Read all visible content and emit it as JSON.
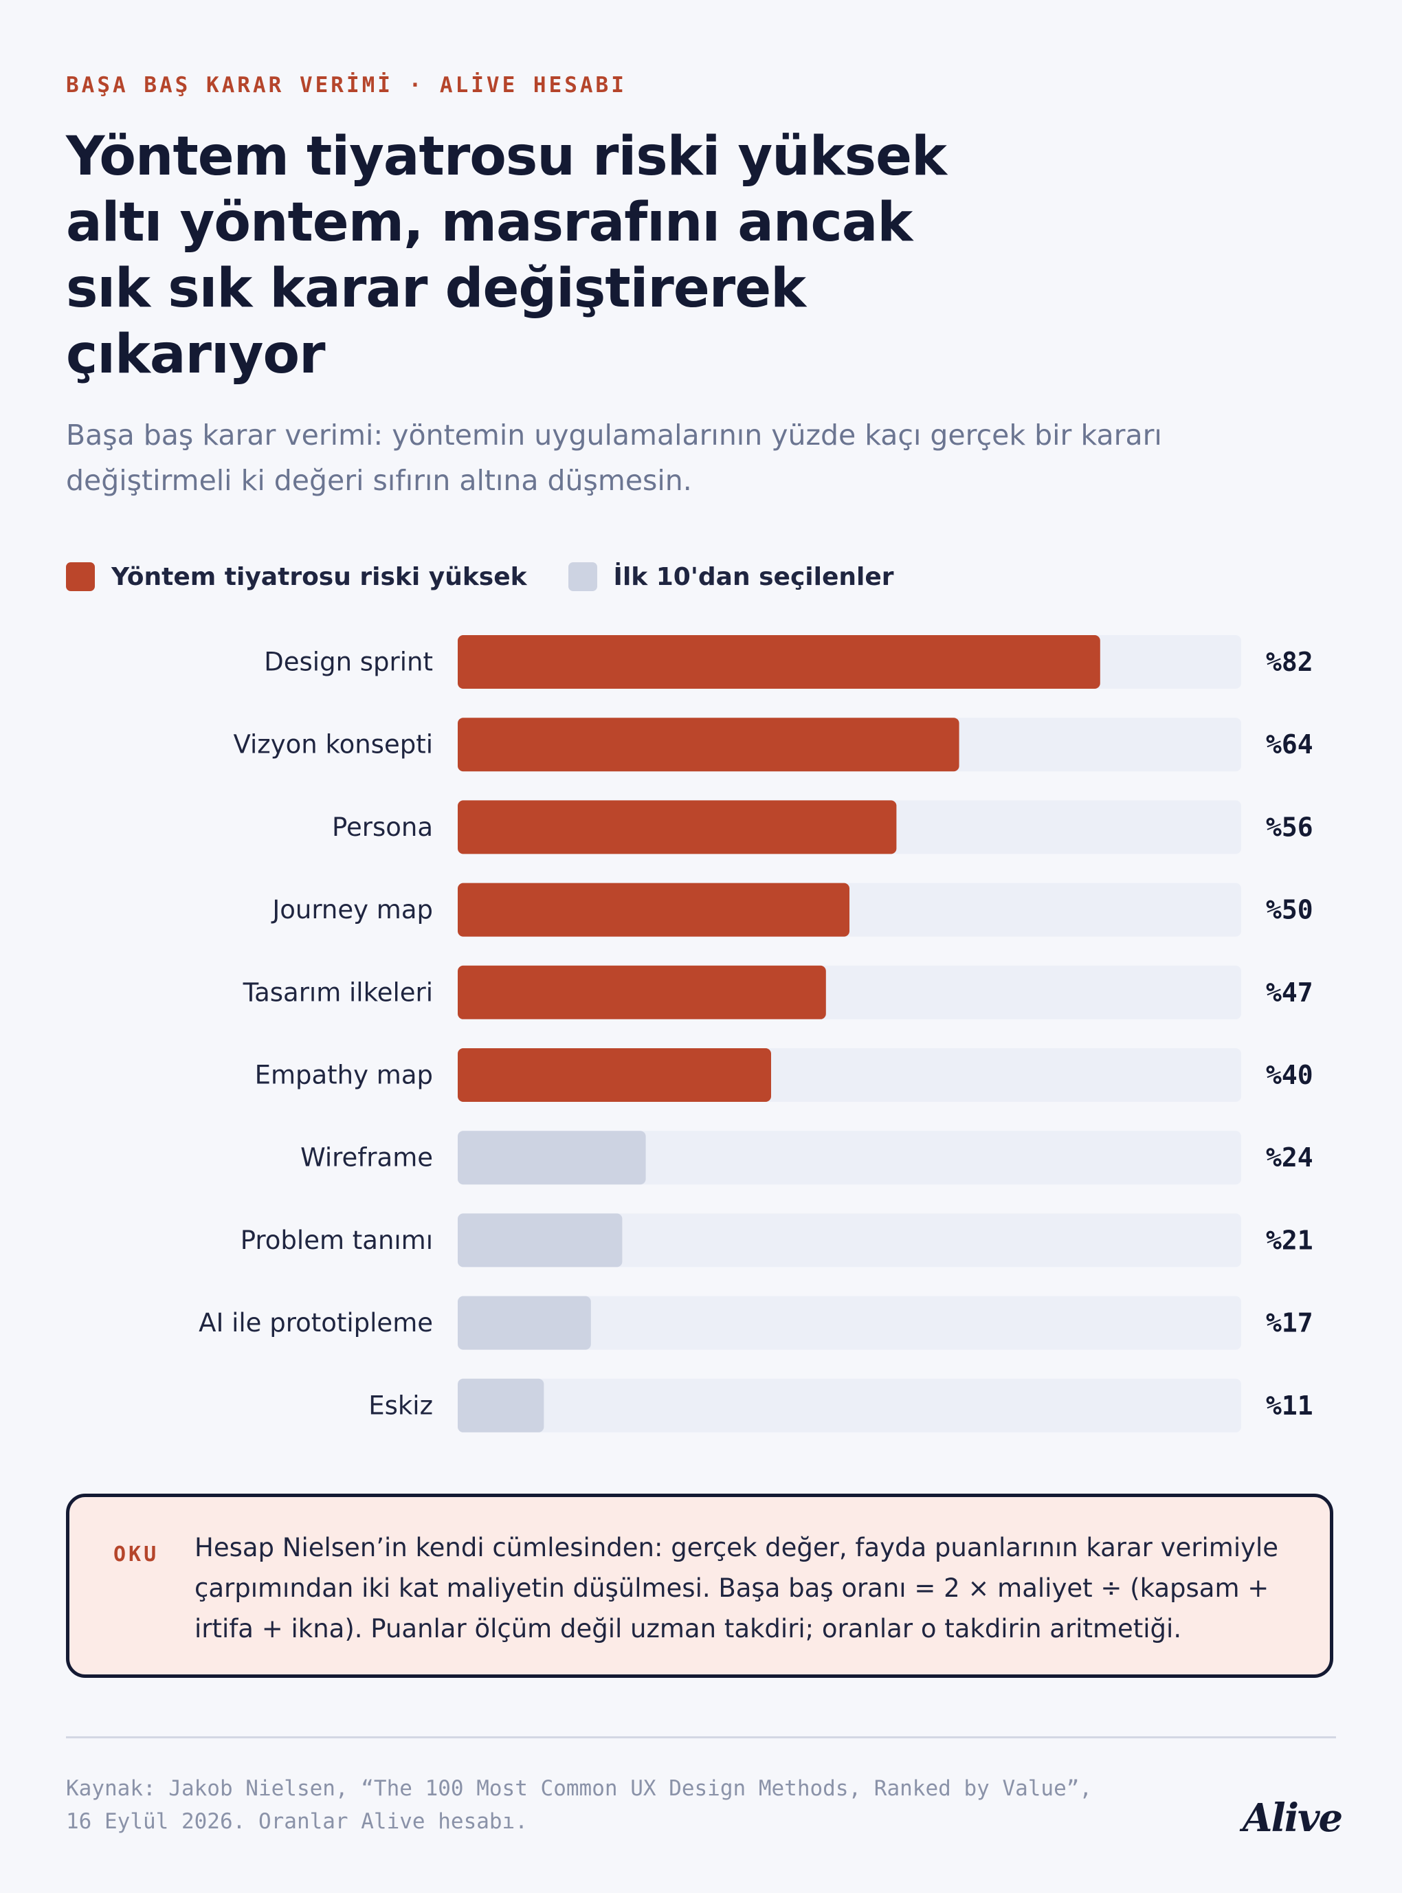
{
  "header": {
    "eyebrow": "BAŞA BAŞ KARAR VERİMİ · ALİVE HESABI",
    "title": "Yöntem tiyatrosu riski yüksek altı yöntem, masrafını ancak sık sık karar değiştirerek çıkarıyor",
    "subtitle": "Başa baş karar verimi: yöntemin uygulamalarının yüzde kaçı gerçek bir kararı değiştirmeli ki değeri sıfırın altına düşmesin."
  },
  "legend": [
    {
      "label": "Yöntem tiyatrosu riski yüksek",
      "color": "#bb462b"
    },
    {
      "label": "İlk 10'dan seçilenler",
      "color": "#cdd3e2"
    }
  ],
  "chart_data": {
    "type": "bar",
    "orientation": "horizontal",
    "categories": [
      "Design sprint",
      "Vizyon konsepti",
      "Persona",
      "Journey map",
      "Tasarım ilkeleri",
      "Empathy map",
      "Wireframe",
      "Problem tanımı",
      "AI ile prototipleme",
      "Eskiz"
    ],
    "values": [
      82,
      64,
      56,
      50,
      47,
      40,
      24,
      21,
      17,
      11
    ],
    "value_labels": [
      "%82",
      "%64",
      "%56",
      "%50",
      "%47",
      "%40",
      "%24",
      "%21",
      "%17",
      "%11"
    ],
    "groups": [
      "Yöntem tiyatrosu riski yüksek",
      "Yöntem tiyatrosu riski yüksek",
      "Yöntem tiyatrosu riski yüksek",
      "Yöntem tiyatrosu riski yüksek",
      "Yöntem tiyatrosu riski yüksek",
      "Yöntem tiyatrosu riski yüksek",
      "İlk 10'dan seçilenler",
      "İlk 10'dan seçilenler",
      "İlk 10'dan seçilenler",
      "İlk 10'dan seçilenler"
    ],
    "xlim": [
      0,
      100
    ],
    "track_color": "#eceff7",
    "grid": false,
    "legend_position": "top-left"
  },
  "note": {
    "tag": "OKU",
    "text": "Hesap Nielsen’in kendi cümlesinden: gerçek değer, fayda puanlarının karar verimiyle çarpımından iki kat maliyetin düşülmesi. Başa baş oranı = 2 × maliyet ÷ (kapsam + irtifa + ikna). Puanlar ölçüm değil uzman takdiri; oranlar o takdirin aritmetiği."
  },
  "footer": {
    "source": "Kaynak: Jakob Nielsen, “The 100 Most Common UX Design Methods, Ranked by Value”, 16 Eylül 2026. Oranlar Alive hesabı.",
    "logo": "Alive"
  }
}
